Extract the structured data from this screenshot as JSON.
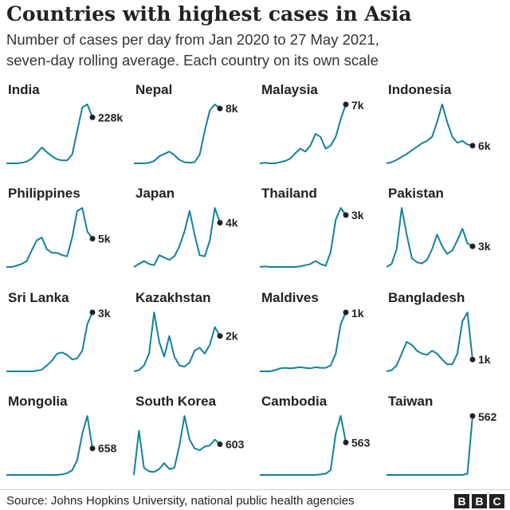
{
  "title": "Countries with highest cases in Asia",
  "subtitle_line1": "Number of cases per day from Jan 2020 to 27 May 2021,",
  "subtitle_line2": "seven-day rolling average. Each country on its own scale",
  "source": "Source: Johns Hopkins University, national public health agencies",
  "logo": [
    "B",
    "B",
    "C"
  ],
  "colors": {
    "line": "#1380a1",
    "dot": "#222222",
    "text": "#222222"
  },
  "chart_data": [
    {
      "type": "line",
      "title": "India",
      "end_label": "228k",
      "values": [
        0,
        0,
        0,
        0.01,
        0.03,
        0.08,
        0.17,
        0.27,
        0.19,
        0.12,
        0.07,
        0.05,
        0.05,
        0.15,
        0.55,
        0.95,
        1.0,
        0.78
      ]
    },
    {
      "type": "line",
      "title": "Nepal",
      "end_label": "8k",
      "values": [
        0,
        0,
        0,
        0.01,
        0.04,
        0.12,
        0.16,
        0.2,
        0.14,
        0.06,
        0.02,
        0.01,
        0.02,
        0.15,
        0.55,
        0.9,
        1.0,
        0.93
      ]
    },
    {
      "type": "line",
      "title": "Malaysia",
      "end_label": "7k",
      "values": [
        0,
        0.01,
        0,
        0,
        0.02,
        0.04,
        0.08,
        0.17,
        0.25,
        0.2,
        0.3,
        0.5,
        0.45,
        0.25,
        0.3,
        0.45,
        0.75,
        1.0
      ]
    },
    {
      "type": "line",
      "title": "Indonesia",
      "end_label": "6k",
      "values": [
        0,
        0.02,
        0.06,
        0.11,
        0.16,
        0.22,
        0.28,
        0.34,
        0.38,
        0.45,
        0.7,
        1.0,
        0.7,
        0.45,
        0.35,
        0.38,
        0.32,
        0.3
      ]
    },
    {
      "type": "line",
      "title": "Philippines",
      "end_label": "5k",
      "values": [
        0,
        0,
        0.02,
        0.05,
        0.1,
        0.28,
        0.45,
        0.5,
        0.3,
        0.24,
        0.24,
        0.2,
        0.18,
        0.5,
        0.95,
        1.0,
        0.6,
        0.48
      ]
    },
    {
      "type": "line",
      "title": "Japan",
      "end_label": "4k",
      "values": [
        0,
        0.05,
        0.1,
        0.05,
        0.03,
        0.2,
        0.16,
        0.12,
        0.18,
        0.35,
        0.6,
        0.95,
        0.55,
        0.2,
        0.18,
        0.45,
        1.0,
        0.75
      ]
    },
    {
      "type": "line",
      "title": "Thailand",
      "end_label": "3k",
      "values": [
        0,
        0.01,
        0,
        0,
        0,
        0,
        0,
        0,
        0.01,
        0.03,
        0.05,
        0.1,
        0.05,
        0.02,
        0.25,
        0.8,
        1.0,
        0.88
      ]
    },
    {
      "type": "line",
      "title": "Pakistan",
      "end_label": "3k",
      "values": [
        0,
        0.05,
        0.3,
        1.0,
        0.55,
        0.15,
        0.08,
        0.06,
        0.12,
        0.3,
        0.55,
        0.35,
        0.22,
        0.28,
        0.45,
        0.65,
        0.4,
        0.35
      ]
    },
    {
      "type": "line",
      "title": "Sri Lanka",
      "end_label": "3k",
      "values": [
        0,
        0,
        0,
        0,
        0,
        0,
        0.01,
        0.03,
        0.1,
        0.18,
        0.3,
        0.32,
        0.28,
        0.2,
        0.22,
        0.35,
        0.8,
        1.0
      ]
    },
    {
      "type": "line",
      "title": "Kazakhstan",
      "end_label": "2k",
      "values": [
        0,
        0.02,
        0.1,
        0.3,
        1.0,
        0.5,
        0.25,
        0.6,
        0.25,
        0.1,
        0.08,
        0.15,
        0.35,
        0.4,
        0.3,
        0.45,
        0.75,
        0.6
      ]
    },
    {
      "type": "line",
      "title": "Maldives",
      "end_label": "1k",
      "values": [
        0,
        0,
        0,
        0.02,
        0.05,
        0.06,
        0.05,
        0.06,
        0.07,
        0.06,
        0.05,
        0.07,
        0.06,
        0.06,
        0.1,
        0.3,
        0.8,
        1.0
      ]
    },
    {
      "type": "line",
      "title": "Bangladesh",
      "end_label": "1k",
      "values": [
        0,
        0.02,
        0.1,
        0.3,
        0.5,
        0.45,
        0.35,
        0.3,
        0.28,
        0.35,
        0.3,
        0.2,
        0.12,
        0.12,
        0.3,
        0.85,
        1.0,
        0.2
      ]
    },
    {
      "type": "line",
      "title": "Mongolia",
      "end_label": "658",
      "values": [
        0,
        0,
        0,
        0,
        0,
        0,
        0,
        0,
        0,
        0,
        0,
        0.01,
        0.03,
        0.08,
        0.25,
        0.7,
        1.0,
        0.45
      ]
    },
    {
      "type": "line",
      "title": "South Korea",
      "end_label": "603",
      "values": [
        0,
        0.75,
        0.12,
        0.06,
        0.05,
        0.1,
        0.2,
        0.1,
        0.12,
        0.5,
        1.0,
        0.6,
        0.45,
        0.42,
        0.48,
        0.5,
        0.6,
        0.52
      ]
    },
    {
      "type": "line",
      "title": "Cambodia",
      "end_label": "563",
      "values": [
        0,
        0,
        0,
        0,
        0,
        0,
        0,
        0,
        0,
        0,
        0,
        0,
        0.01,
        0.02,
        0.08,
        0.7,
        1.0,
        0.55
      ]
    },
    {
      "type": "line",
      "title": "Taiwan",
      "end_label": "562",
      "values": [
        0,
        0,
        0,
        0,
        0,
        0,
        0,
        0,
        0,
        0,
        0,
        0,
        0,
        0,
        0,
        0,
        0.02,
        1.0
      ]
    }
  ]
}
